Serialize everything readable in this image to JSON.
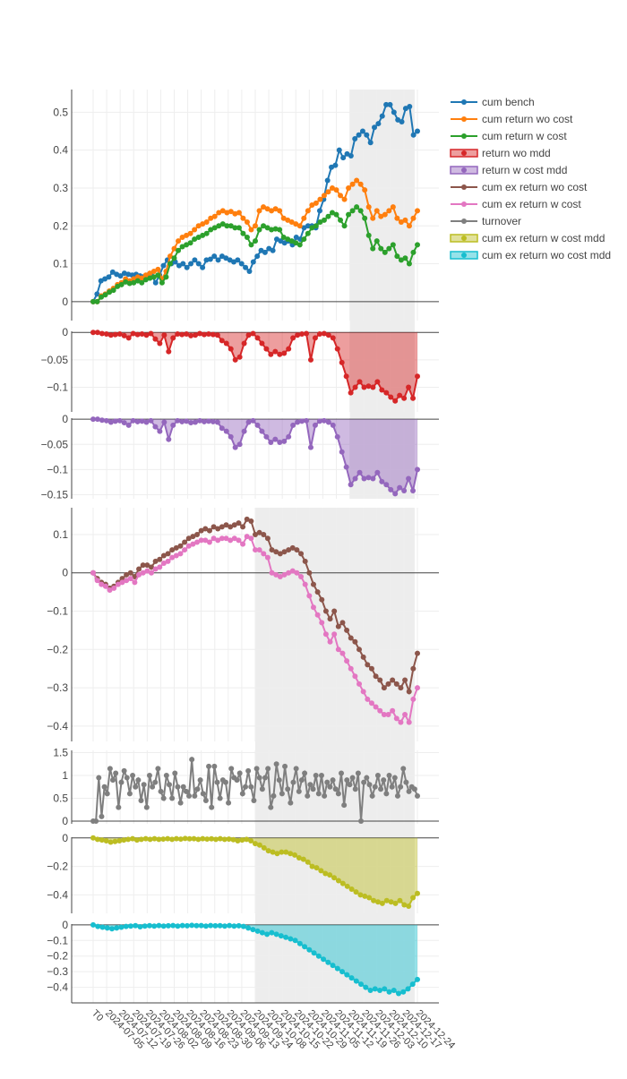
{
  "chart_data": {
    "type": "line",
    "date_ticks": [
      "T0",
      "2024-07-05",
      "2024-07-12",
      "2024-07-19",
      "2024-07-26",
      "2024-08-02",
      "2024-08-09",
      "2024-08-16",
      "2024-08-23",
      "2024-08-30",
      "2024-09-06",
      "2024-09-13",
      "2024-09-24",
      "2024-10-08",
      "2024-10-15",
      "2024-10-22",
      "2024-10-29",
      "2024-11-05",
      "2024-11-12",
      "2024-11-19",
      "2024-11-26",
      "2024-12-03",
      "2024-12-10",
      "2024-12-17",
      "2024-12-24"
    ],
    "legend_placement": "top-right",
    "grid": true,
    "shaded_regions": [
      {
        "panels": [
          "p1",
          "p2",
          "p3"
        ],
        "from": "2024-11-19",
        "to": "2024-12-20",
        "color": "#e8e8e8"
      },
      {
        "panels": [
          "p4",
          "p5",
          "p6",
          "p7"
        ],
        "from": "2024-09-24",
        "to": "2024-12-20",
        "color": "#e8e8e8"
      }
    ],
    "panels": [
      {
        "id": "p1",
        "ylim": [
          -0.05,
          0.56
        ],
        "yticks": [
          0,
          0.1,
          0.2,
          0.3,
          0.4,
          0.5
        ],
        "ytick_labels": [
          "0",
          "0.1",
          "0.2",
          "0.3",
          "0.4",
          "0.5"
        ],
        "series": [
          "cum bench",
          "cum return wo cost",
          "cum return w cost"
        ]
      },
      {
        "id": "p2",
        "ylim": [
          -0.145,
          0.002
        ],
        "yticks": [
          0,
          -0.05,
          -0.1
        ],
        "ytick_labels": [
          "0",
          "−0.05",
          "−0.1"
        ],
        "series": [
          "return wo mdd"
        ]
      },
      {
        "id": "p3",
        "ylim": [
          -0.158,
          0.002
        ],
        "yticks": [
          0,
          -0.05,
          -0.1,
          -0.15
        ],
        "ytick_labels": [
          "0",
          "−0.05",
          "−0.1",
          "−0.15"
        ],
        "series": [
          "return w cost mdd"
        ]
      },
      {
        "id": "p4",
        "ylim": [
          -0.44,
          0.17
        ],
        "yticks": [
          0.1,
          0,
          -0.1,
          -0.2,
          -0.3,
          -0.4
        ],
        "ytick_labels": [
          "0.1",
          "0",
          "−0.1",
          "−0.2",
          "−0.3",
          "−0.4"
        ],
        "series": [
          "cum ex return wo cost",
          "cum ex return w cost"
        ]
      },
      {
        "id": "p5",
        "ylim": [
          -0.06,
          1.55
        ],
        "yticks": [
          0,
          0.5,
          1,
          1.5
        ],
        "ytick_labels": [
          "0",
          "0.5",
          "1",
          "1.5"
        ],
        "series": [
          "turnover"
        ]
      },
      {
        "id": "p6",
        "ylim": [
          -0.53,
          0.005
        ],
        "yticks": [
          0,
          -0.2,
          -0.4
        ],
        "ytick_labels": [
          "0",
          "−0.2",
          "−0.4"
        ],
        "series": [
          "cum ex return w cost mdd"
        ]
      },
      {
        "id": "p7",
        "ylim": [
          -0.5,
          0.005
        ],
        "yticks": [
          0,
          -0.1,
          -0.2,
          -0.3,
          -0.4
        ],
        "ytick_labels": [
          "0",
          "−0.1",
          "−0.2",
          "−0.3",
          "−0.4"
        ],
        "series": [
          "cum ex return wo cost mdd"
        ]
      }
    ],
    "series": [
      {
        "name": "cum bench",
        "color": "#1f77b4",
        "style": "line",
        "panel": "p1",
        "values": [
          0.0,
          0.02,
          0.055,
          0.06,
          0.065,
          0.078,
          0.072,
          0.068,
          0.075,
          0.072,
          0.07,
          0.072,
          0.068,
          0.066,
          0.07,
          0.068,
          0.05,
          0.07,
          0.095,
          0.11,
          0.1,
          0.105,
          0.095,
          0.1,
          0.09,
          0.1,
          0.11,
          0.1,
          0.09,
          0.11,
          0.112,
          0.12,
          0.11,
          0.12,
          0.115,
          0.11,
          0.105,
          0.11,
          0.1,
          0.09,
          0.08,
          0.105,
          0.12,
          0.135,
          0.13,
          0.14,
          0.135,
          0.165,
          0.16,
          0.155,
          0.16,
          0.15,
          0.17,
          0.165,
          0.195,
          0.2,
          0.2,
          0.195,
          0.24,
          0.27,
          0.32,
          0.355,
          0.36,
          0.4,
          0.38,
          0.39,
          0.385,
          0.43,
          0.44,
          0.45,
          0.44,
          0.42,
          0.46,
          0.47,
          0.49,
          0.52,
          0.52,
          0.5,
          0.48,
          0.475,
          0.51,
          0.515,
          0.44,
          0.45
        ]
      },
      {
        "name": "cum return wo cost",
        "color": "#ff7f0e",
        "style": "line",
        "panel": "p1",
        "values": [
          0.0,
          0.0,
          0.015,
          0.02,
          0.028,
          0.035,
          0.045,
          0.05,
          0.06,
          0.055,
          0.06,
          0.065,
          0.062,
          0.07,
          0.075,
          0.08,
          0.085,
          0.06,
          0.08,
          0.12,
          0.14,
          0.16,
          0.17,
          0.175,
          0.18,
          0.19,
          0.2,
          0.205,
          0.21,
          0.22,
          0.225,
          0.235,
          0.24,
          0.235,
          0.238,
          0.232,
          0.235,
          0.22,
          0.21,
          0.19,
          0.2,
          0.24,
          0.25,
          0.245,
          0.24,
          0.245,
          0.24,
          0.22,
          0.215,
          0.21,
          0.205,
          0.2,
          0.22,
          0.24,
          0.255,
          0.26,
          0.27,
          0.28,
          0.29,
          0.3,
          0.295,
          0.28,
          0.27,
          0.3,
          0.31,
          0.32,
          0.31,
          0.295,
          0.25,
          0.22,
          0.24,
          0.225,
          0.23,
          0.24,
          0.25,
          0.22,
          0.21,
          0.215,
          0.2,
          0.22,
          0.24
        ]
      },
      {
        "name": "cum return w cost",
        "color": "#2ca02c",
        "style": "line",
        "panel": "p1",
        "values": [
          0.0,
          0.0,
          0.012,
          0.018,
          0.025,
          0.03,
          0.04,
          0.045,
          0.052,
          0.048,
          0.05,
          0.055,
          0.05,
          0.058,
          0.062,
          0.065,
          0.07,
          0.05,
          0.065,
          0.1,
          0.115,
          0.135,
          0.145,
          0.15,
          0.155,
          0.165,
          0.17,
          0.175,
          0.18,
          0.19,
          0.195,
          0.2,
          0.205,
          0.2,
          0.2,
          0.195,
          0.195,
          0.18,
          0.17,
          0.15,
          0.16,
          0.19,
          0.2,
          0.195,
          0.19,
          0.192,
          0.19,
          0.17,
          0.165,
          0.16,
          0.155,
          0.15,
          0.165,
          0.18,
          0.195,
          0.2,
          0.21,
          0.215,
          0.225,
          0.235,
          0.23,
          0.215,
          0.2,
          0.23,
          0.24,
          0.25,
          0.24,
          0.22,
          0.175,
          0.14,
          0.16,
          0.14,
          0.13,
          0.14,
          0.15,
          0.12,
          0.11,
          0.115,
          0.1,
          0.13,
          0.15
        ]
      },
      {
        "name": "return wo mdd",
        "color": "#d62728",
        "style": "area",
        "panel": "p2",
        "values": [
          0.0,
          0.0,
          -0.002,
          -0.003,
          -0.005,
          -0.004,
          -0.003,
          -0.006,
          -0.01,
          -0.002,
          -0.004,
          -0.003,
          -0.005,
          -0.002,
          -0.012,
          -0.02,
          -0.005,
          -0.035,
          -0.01,
          -0.003,
          -0.004,
          -0.003,
          -0.006,
          -0.005,
          -0.002,
          -0.004,
          -0.003,
          -0.004,
          -0.005,
          -0.015,
          -0.02,
          -0.03,
          -0.05,
          -0.045,
          -0.02,
          -0.005,
          -0.002,
          -0.01,
          -0.02,
          -0.03,
          -0.04,
          -0.035,
          -0.04,
          -0.038,
          -0.03,
          -0.01,
          -0.005,
          -0.003,
          -0.002,
          -0.05,
          -0.01,
          -0.003,
          -0.002,
          -0.005,
          -0.01,
          -0.03,
          -0.055,
          -0.08,
          -0.11,
          -0.1,
          -0.09,
          -0.1,
          -0.098,
          -0.1,
          -0.09,
          -0.105,
          -0.11,
          -0.118,
          -0.125,
          -0.115,
          -0.12,
          -0.1,
          -0.12,
          -0.08
        ]
      },
      {
        "name": "return w cost mdd",
        "color": "#9467bd",
        "style": "area",
        "panel": "p3",
        "values": [
          0.0,
          0.0,
          -0.002,
          -0.003,
          -0.006,
          -0.004,
          -0.003,
          -0.007,
          -0.012,
          -0.003,
          -0.005,
          -0.004,
          -0.006,
          -0.003,
          -0.015,
          -0.024,
          -0.006,
          -0.04,
          -0.012,
          -0.003,
          -0.005,
          -0.004,
          -0.007,
          -0.006,
          -0.003,
          -0.005,
          -0.004,
          -0.005,
          -0.006,
          -0.018,
          -0.024,
          -0.035,
          -0.056,
          -0.05,
          -0.024,
          -0.006,
          -0.003,
          -0.012,
          -0.024,
          -0.035,
          -0.046,
          -0.04,
          -0.046,
          -0.044,
          -0.035,
          -0.012,
          -0.006,
          -0.004,
          -0.003,
          -0.056,
          -0.012,
          -0.004,
          -0.003,
          -0.006,
          -0.012,
          -0.035,
          -0.065,
          -0.095,
          -0.13,
          -0.118,
          -0.106,
          -0.118,
          -0.116,
          -0.118,
          -0.106,
          -0.124,
          -0.13,
          -0.14,
          -0.148,
          -0.136,
          -0.142,
          -0.118,
          -0.142,
          -0.1
        ]
      },
      {
        "name": "cum ex return wo cost",
        "color": "#8c564b",
        "style": "line",
        "panel": "p4",
        "values": [
          0.0,
          -0.015,
          -0.025,
          -0.03,
          -0.04,
          -0.035,
          -0.025,
          -0.015,
          -0.005,
          0.0,
          -0.01,
          0.01,
          0.02,
          0.02,
          0.015,
          0.03,
          0.035,
          0.045,
          0.05,
          0.06,
          0.065,
          0.07,
          0.08,
          0.09,
          0.095,
          0.1,
          0.11,
          0.115,
          0.11,
          0.12,
          0.115,
          0.12,
          0.125,
          0.12,
          0.125,
          0.13,
          0.12,
          0.14,
          0.135,
          0.1,
          0.105,
          0.1,
          0.09,
          0.06,
          0.055,
          0.05,
          0.055,
          0.06,
          0.065,
          0.06,
          0.05,
          0.03,
          0.0,
          -0.03,
          -0.05,
          -0.07,
          -0.1,
          -0.12,
          -0.1,
          -0.14,
          -0.13,
          -0.15,
          -0.17,
          -0.18,
          -0.2,
          -0.22,
          -0.24,
          -0.25,
          -0.27,
          -0.28,
          -0.3,
          -0.29,
          -0.28,
          -0.29,
          -0.3,
          -0.28,
          -0.31,
          -0.25,
          -0.21
        ]
      },
      {
        "name": "cum ex return w cost",
        "color": "#e377c2",
        "style": "line",
        "panel": "p4",
        "values": [
          0.0,
          -0.02,
          -0.03,
          -0.035,
          -0.045,
          -0.04,
          -0.03,
          -0.025,
          -0.02,
          -0.015,
          -0.025,
          -0.005,
          0.0,
          0.005,
          0.0,
          0.01,
          0.015,
          0.025,
          0.03,
          0.04,
          0.045,
          0.05,
          0.06,
          0.07,
          0.075,
          0.08,
          0.085,
          0.085,
          0.08,
          0.09,
          0.085,
          0.09,
          0.09,
          0.085,
          0.09,
          0.085,
          0.075,
          0.095,
          0.09,
          0.06,
          0.06,
          0.05,
          0.04,
          0.0,
          -0.005,
          -0.01,
          -0.005,
          0.0,
          0.005,
          0.0,
          -0.01,
          -0.03,
          -0.06,
          -0.09,
          -0.11,
          -0.13,
          -0.16,
          -0.18,
          -0.16,
          -0.2,
          -0.21,
          -0.23,
          -0.25,
          -0.27,
          -0.29,
          -0.31,
          -0.33,
          -0.34,
          -0.35,
          -0.36,
          -0.37,
          -0.37,
          -0.36,
          -0.38,
          -0.39,
          -0.37,
          -0.39,
          -0.33,
          -0.3
        ]
      },
      {
        "name": "turnover",
        "color": "#7f7f7f",
        "style": "line",
        "panel": "p5",
        "values": [
          0.0,
          0.0,
          0.95,
          0.1,
          0.75,
          0.6,
          1.15,
          0.9,
          1.05,
          0.3,
          0.85,
          1.1,
          0.95,
          0.6,
          1.0,
          0.75,
          0.9,
          0.45,
          0.8,
          0.3,
          1.0,
          0.75,
          0.85,
          1.15,
          0.65,
          0.5,
          1.0,
          0.8,
          0.5,
          1.05,
          0.75,
          0.4,
          0.75,
          0.65,
          0.55,
          1.35,
          0.55,
          0.7,
          0.9,
          0.6,
          0.45,
          1.2,
          0.3,
          1.2,
          0.85,
          0.5,
          0.9,
          0.85,
          0.4,
          1.15,
          0.95,
          0.9,
          1.05,
          0.6,
          0.75,
          1.1,
          0.75,
          0.45,
          1.15,
          0.95,
          0.7,
          0.95,
          1.15,
          0.3,
          0.55,
          1.25,
          0.9,
          0.6,
          1.2,
          0.7,
          0.4,
          0.85,
          1.15,
          0.65,
          0.9,
          1.05,
          0.55,
          0.8,
          0.7,
          1.0,
          0.6,
          1.0,
          0.55,
          0.85,
          0.75,
          0.9,
          0.7,
          0.6,
          1.05,
          0.35,
          0.9,
          0.8,
          0.95,
          0.7,
          1.05,
          0.0,
          0.85,
          0.95,
          0.8,
          0.55,
          0.75,
          1.0,
          0.7,
          0.9,
          0.6,
          1.0,
          0.75,
          0.95,
          0.55,
          0.75,
          1.15,
          0.85,
          0.65,
          0.75,
          0.7,
          0.55
        ]
      },
      {
        "name": "cum ex return w cost mdd",
        "color": "#bcbd22",
        "style": "area",
        "panel": "p6",
        "values": [
          0.0,
          -0.01,
          -0.015,
          -0.02,
          -0.03,
          -0.025,
          -0.02,
          -0.015,
          -0.01,
          -0.005,
          -0.015,
          -0.01,
          -0.005,
          -0.01,
          -0.005,
          -0.01,
          -0.008,
          -0.005,
          -0.01,
          -0.005,
          -0.008,
          -0.004,
          -0.006,
          -0.005,
          -0.01,
          -0.005,
          -0.008,
          -0.006,
          -0.01,
          -0.005,
          -0.01,
          -0.008,
          -0.012,
          -0.02,
          -0.015,
          -0.01,
          -0.02,
          -0.04,
          -0.05,
          -0.07,
          -0.09,
          -0.1,
          -0.11,
          -0.1,
          -0.1,
          -0.11,
          -0.12,
          -0.14,
          -0.15,
          -0.17,
          -0.2,
          -0.21,
          -0.23,
          -0.25,
          -0.26,
          -0.28,
          -0.3,
          -0.32,
          -0.34,
          -0.36,
          -0.38,
          -0.4,
          -0.41,
          -0.42,
          -0.44,
          -0.45,
          -0.46,
          -0.44,
          -0.45,
          -0.46,
          -0.44,
          -0.47,
          -0.48,
          -0.42,
          -0.39
        ]
      },
      {
        "name": "cum ex return wo cost mdd",
        "color": "#17becf",
        "style": "area",
        "panel": "p7",
        "values": [
          0.0,
          -0.01,
          -0.015,
          -0.02,
          -0.025,
          -0.02,
          -0.015,
          -0.01,
          -0.008,
          -0.005,
          -0.012,
          -0.008,
          -0.005,
          -0.008,
          -0.004,
          -0.008,
          -0.006,
          -0.004,
          -0.008,
          -0.004,
          -0.006,
          -0.003,
          -0.005,
          -0.004,
          -0.008,
          -0.004,
          -0.006,
          -0.005,
          -0.008,
          -0.004,
          -0.008,
          -0.006,
          -0.01,
          -0.02,
          -0.03,
          -0.04,
          -0.05,
          -0.06,
          -0.05,
          -0.06,
          -0.07,
          -0.08,
          -0.09,
          -0.1,
          -0.12,
          -0.14,
          -0.16,
          -0.18,
          -0.2,
          -0.22,
          -0.24,
          -0.26,
          -0.28,
          -0.3,
          -0.32,
          -0.34,
          -0.36,
          -0.38,
          -0.4,
          -0.42,
          -0.41,
          -0.42,
          -0.41,
          -0.43,
          -0.42,
          -0.44,
          -0.43,
          -0.41,
          -0.38,
          -0.35
        ]
      }
    ]
  }
}
